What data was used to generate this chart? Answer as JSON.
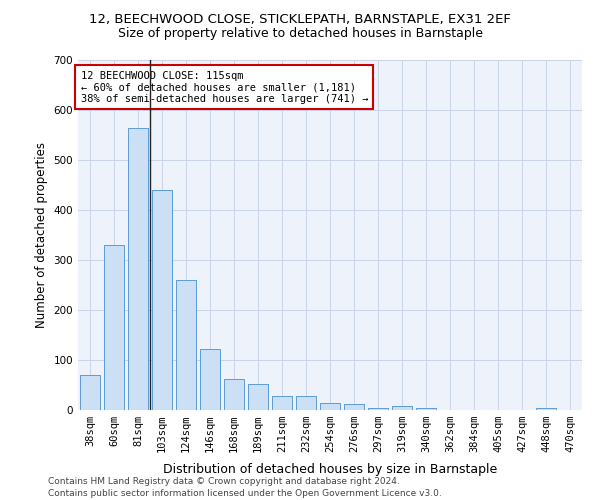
{
  "title1": "12, BEECHWOOD CLOSE, STICKLEPATH, BARNSTAPLE, EX31 2EF",
  "title2": "Size of property relative to detached houses in Barnstaple",
  "xlabel": "Distribution of detached houses by size in Barnstaple",
  "ylabel": "Number of detached properties",
  "categories": [
    "38sqm",
    "60sqm",
    "81sqm",
    "103sqm",
    "124sqm",
    "146sqm",
    "168sqm",
    "189sqm",
    "211sqm",
    "232sqm",
    "254sqm",
    "276sqm",
    "297sqm",
    "319sqm",
    "340sqm",
    "362sqm",
    "384sqm",
    "405sqm",
    "427sqm",
    "448sqm",
    "470sqm"
  ],
  "values": [
    70,
    330,
    565,
    440,
    260,
    123,
    63,
    53,
    28,
    28,
    15,
    13,
    5,
    8,
    5,
    0,
    0,
    0,
    0,
    5,
    0
  ],
  "bar_color": "#cce0f5",
  "bar_edge_color": "#5b9bd5",
  "annotation_text": "12 BEECHWOOD CLOSE: 115sqm\n← 60% of detached houses are smaller (1,181)\n38% of semi-detached houses are larger (741) →",
  "annotation_box_color": "#ffffff",
  "annotation_box_edge": "#cc0000",
  "footer": "Contains HM Land Registry data © Crown copyright and database right 2024.\nContains public sector information licensed under the Open Government Licence v3.0.",
  "ylim": [
    0,
    700
  ],
  "yticks": [
    0,
    100,
    200,
    300,
    400,
    500,
    600,
    700
  ],
  "bg_color": "#ffffff",
  "grid_color": "#c8d4e8",
  "title1_fontsize": 9.5,
  "title2_fontsize": 9,
  "xlabel_fontsize": 9,
  "ylabel_fontsize": 8.5,
  "tick_fontsize": 7.5,
  "footer_fontsize": 6.5,
  "ann_fontsize": 7.5
}
